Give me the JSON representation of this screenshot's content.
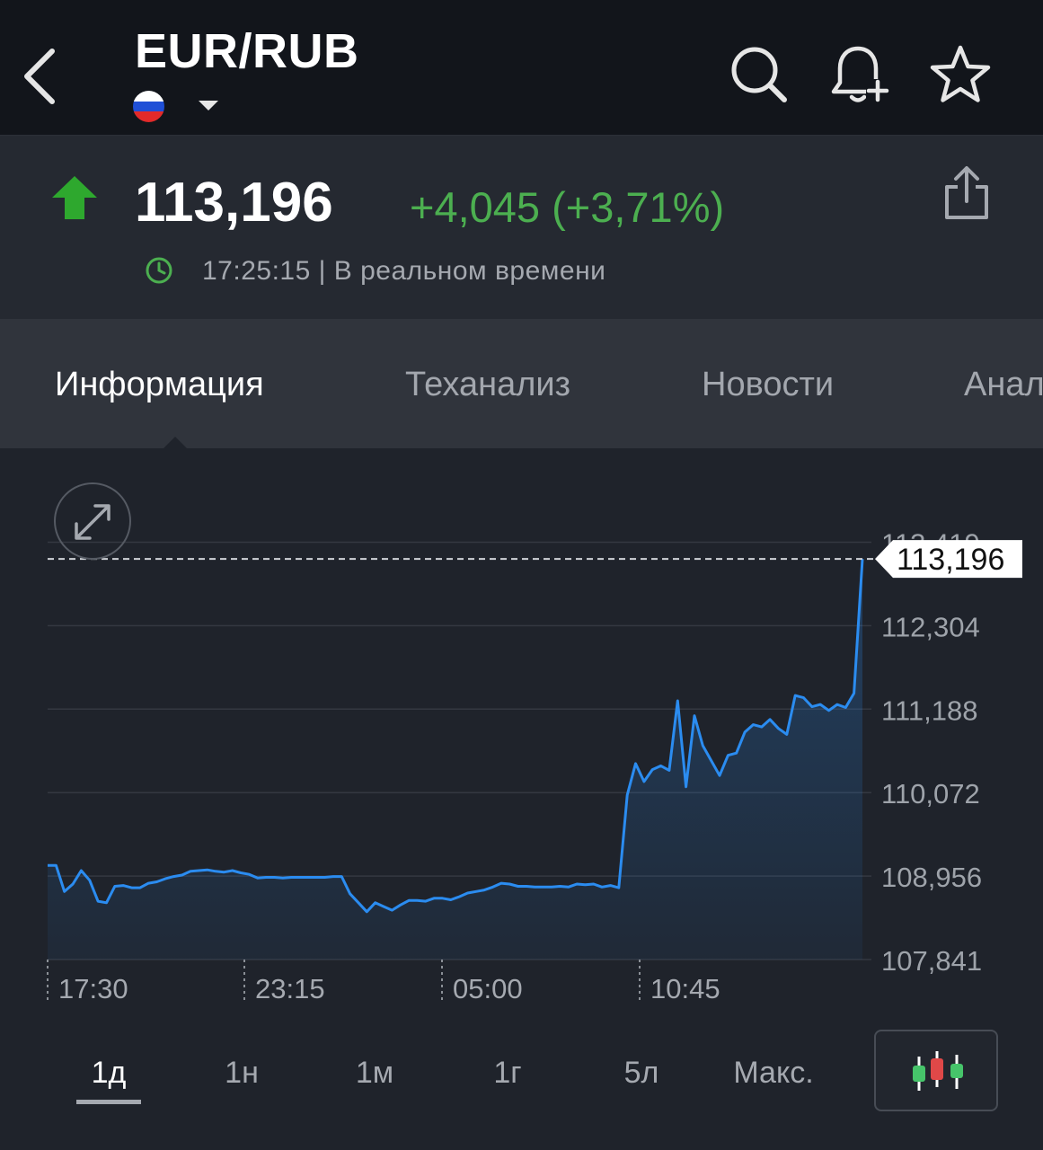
{
  "header": {
    "title": "EUR/RUB",
    "flag_colors": [
      "#ffffff",
      "#1f4fd6",
      "#e22a2a"
    ]
  },
  "quote": {
    "price": "113,196",
    "change": "+4,045 (+3,71%)",
    "timestamp": "17:25:15 | В реальном времени",
    "up_color": "#2ea82e",
    "change_color": "#4caf50"
  },
  "tabs": [
    {
      "label": "Информация",
      "active": true
    },
    {
      "label": "Теханализ",
      "active": false
    },
    {
      "label": "Новости",
      "active": false
    },
    {
      "label": "Анал",
      "active": false
    }
  ],
  "chart_data": {
    "type": "area",
    "y_ticks": [
      "112,304",
      "111,188",
      "110,072",
      "108,956",
      "107,841"
    ],
    "top_tick_partial": "113,419",
    "ylim": [
      107.841,
      113.419
    ],
    "x_ticks": [
      "17:30",
      "23:15",
      "05:00",
      "10:45"
    ],
    "current_label": "113,196",
    "current_value": 113.196,
    "line_color": "#2b8cf0",
    "values": [
      109.1,
      109.1,
      108.75,
      108.85,
      109.03,
      108.9,
      108.62,
      108.6,
      108.82,
      108.83,
      108.8,
      108.8,
      108.86,
      108.88,
      108.92,
      108.95,
      108.97,
      109.02,
      109.03,
      109.04,
      109.02,
      109.01,
      109.03,
      109.0,
      108.98,
      108.93,
      108.94,
      108.94,
      108.93,
      108.94,
      108.94,
      108.94,
      108.94,
      108.94,
      108.95,
      108.95,
      108.72,
      108.6,
      108.48,
      108.6,
      108.55,
      108.5,
      108.57,
      108.63,
      108.63,
      108.62,
      108.66,
      108.66,
      108.64,
      108.68,
      108.73,
      108.75,
      108.77,
      108.81,
      108.86,
      108.85,
      108.82,
      108.82,
      108.81,
      108.81,
      108.81,
      108.82,
      108.81,
      108.85,
      108.84,
      108.85,
      108.81,
      108.83,
      108.8,
      110.04,
      110.46,
      110.22,
      110.38,
      110.43,
      110.37,
      111.3,
      110.15,
      111.1,
      110.7,
      110.5,
      110.3,
      110.57,
      110.6,
      110.88,
      110.98,
      110.95,
      111.05,
      110.93,
      110.85,
      111.37,
      111.34,
      111.22,
      111.25,
      111.17,
      111.25,
      111.21,
      111.4,
      113.196
    ]
  },
  "periods": [
    {
      "label": "1д",
      "active": true
    },
    {
      "label": "1н",
      "active": false
    },
    {
      "label": "1м",
      "active": false
    },
    {
      "label": "1г",
      "active": false
    },
    {
      "label": "5л",
      "active": false
    },
    {
      "label": "Макс.",
      "active": false
    }
  ]
}
